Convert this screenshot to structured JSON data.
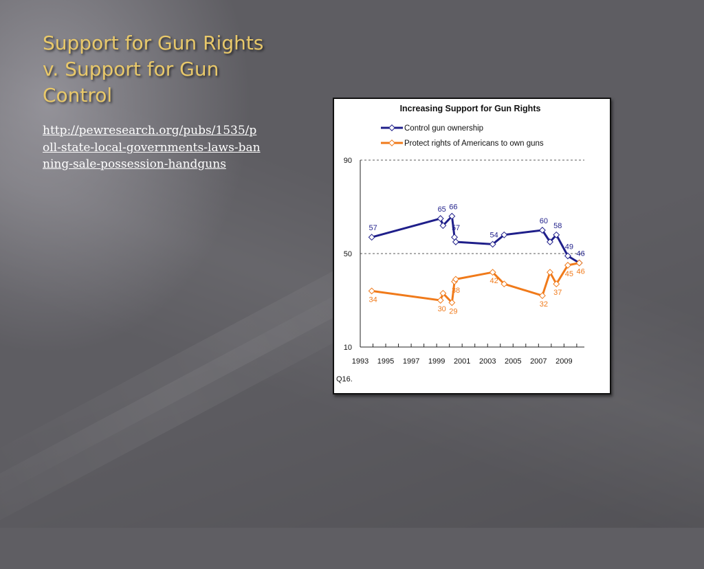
{
  "slide": {
    "title": "Support for Gun Rights v. Support for Gun Control",
    "link": "http://pewresearch.org/pubs/1535/poll-state-local-governments-laws-banning-sale-possession-handguns"
  },
  "colors": {
    "title": "#e8c86a",
    "link": "#ffffff",
    "series_control": "#1f1f8a",
    "series_rights": "#f07a1a"
  },
  "chart_data": {
    "type": "line",
    "title": "Increasing Support for Gun Rights",
    "footnote": "Q16.",
    "ylim": [
      10,
      90
    ],
    "yticks": [
      10,
      50,
      90
    ],
    "xlim": [
      1993,
      2010.6
    ],
    "xticks": [
      "1993",
      "1995",
      "1997",
      "1999",
      "2001",
      "2003",
      "2005",
      "2007",
      "2009"
    ],
    "gridlines": [
      50,
      90
    ],
    "legend_position": "top-left",
    "series": [
      {
        "name": "Control gun ownership",
        "color": "#1f1f8a",
        "points": [
          {
            "x": 1993.9,
            "y": 57,
            "label": "57"
          },
          {
            "x": 1999.3,
            "y": 65,
            "label": "65"
          },
          {
            "x": 1999.5,
            "y": 62
          },
          {
            "x": 2000.2,
            "y": 66,
            "label": "66"
          },
          {
            "x": 2000.4,
            "y": 57,
            "label": "57"
          },
          {
            "x": 2000.5,
            "y": 55
          },
          {
            "x": 2003.4,
            "y": 54,
            "label": "54"
          },
          {
            "x": 2004.3,
            "y": 58
          },
          {
            "x": 2007.3,
            "y": 60,
            "label": "60"
          },
          {
            "x": 2007.9,
            "y": 55
          },
          {
            "x": 2008.4,
            "y": 58,
            "label": "58"
          },
          {
            "x": 2009.3,
            "y": 49,
            "label": "49"
          },
          {
            "x": 2010.2,
            "y": 46,
            "label": "46"
          }
        ]
      },
      {
        "name": "Protect rights of Americans to own guns",
        "color": "#f07a1a",
        "points": [
          {
            "x": 1993.9,
            "y": 34,
            "label": "34"
          },
          {
            "x": 1999.3,
            "y": 30,
            "label": "30"
          },
          {
            "x": 1999.5,
            "y": 33
          },
          {
            "x": 2000.2,
            "y": 29,
            "label": "29"
          },
          {
            "x": 2000.4,
            "y": 38,
            "label": "38"
          },
          {
            "x": 2000.5,
            "y": 39
          },
          {
            "x": 2003.4,
            "y": 42,
            "label": "42"
          },
          {
            "x": 2004.3,
            "y": 37
          },
          {
            "x": 2007.3,
            "y": 32,
            "label": "32"
          },
          {
            "x": 2007.9,
            "y": 42
          },
          {
            "x": 2008.4,
            "y": 37,
            "label": "37"
          },
          {
            "x": 2009.3,
            "y": 45,
            "label": "45"
          },
          {
            "x": 2010.2,
            "y": 46,
            "label": "46"
          }
        ]
      }
    ]
  }
}
